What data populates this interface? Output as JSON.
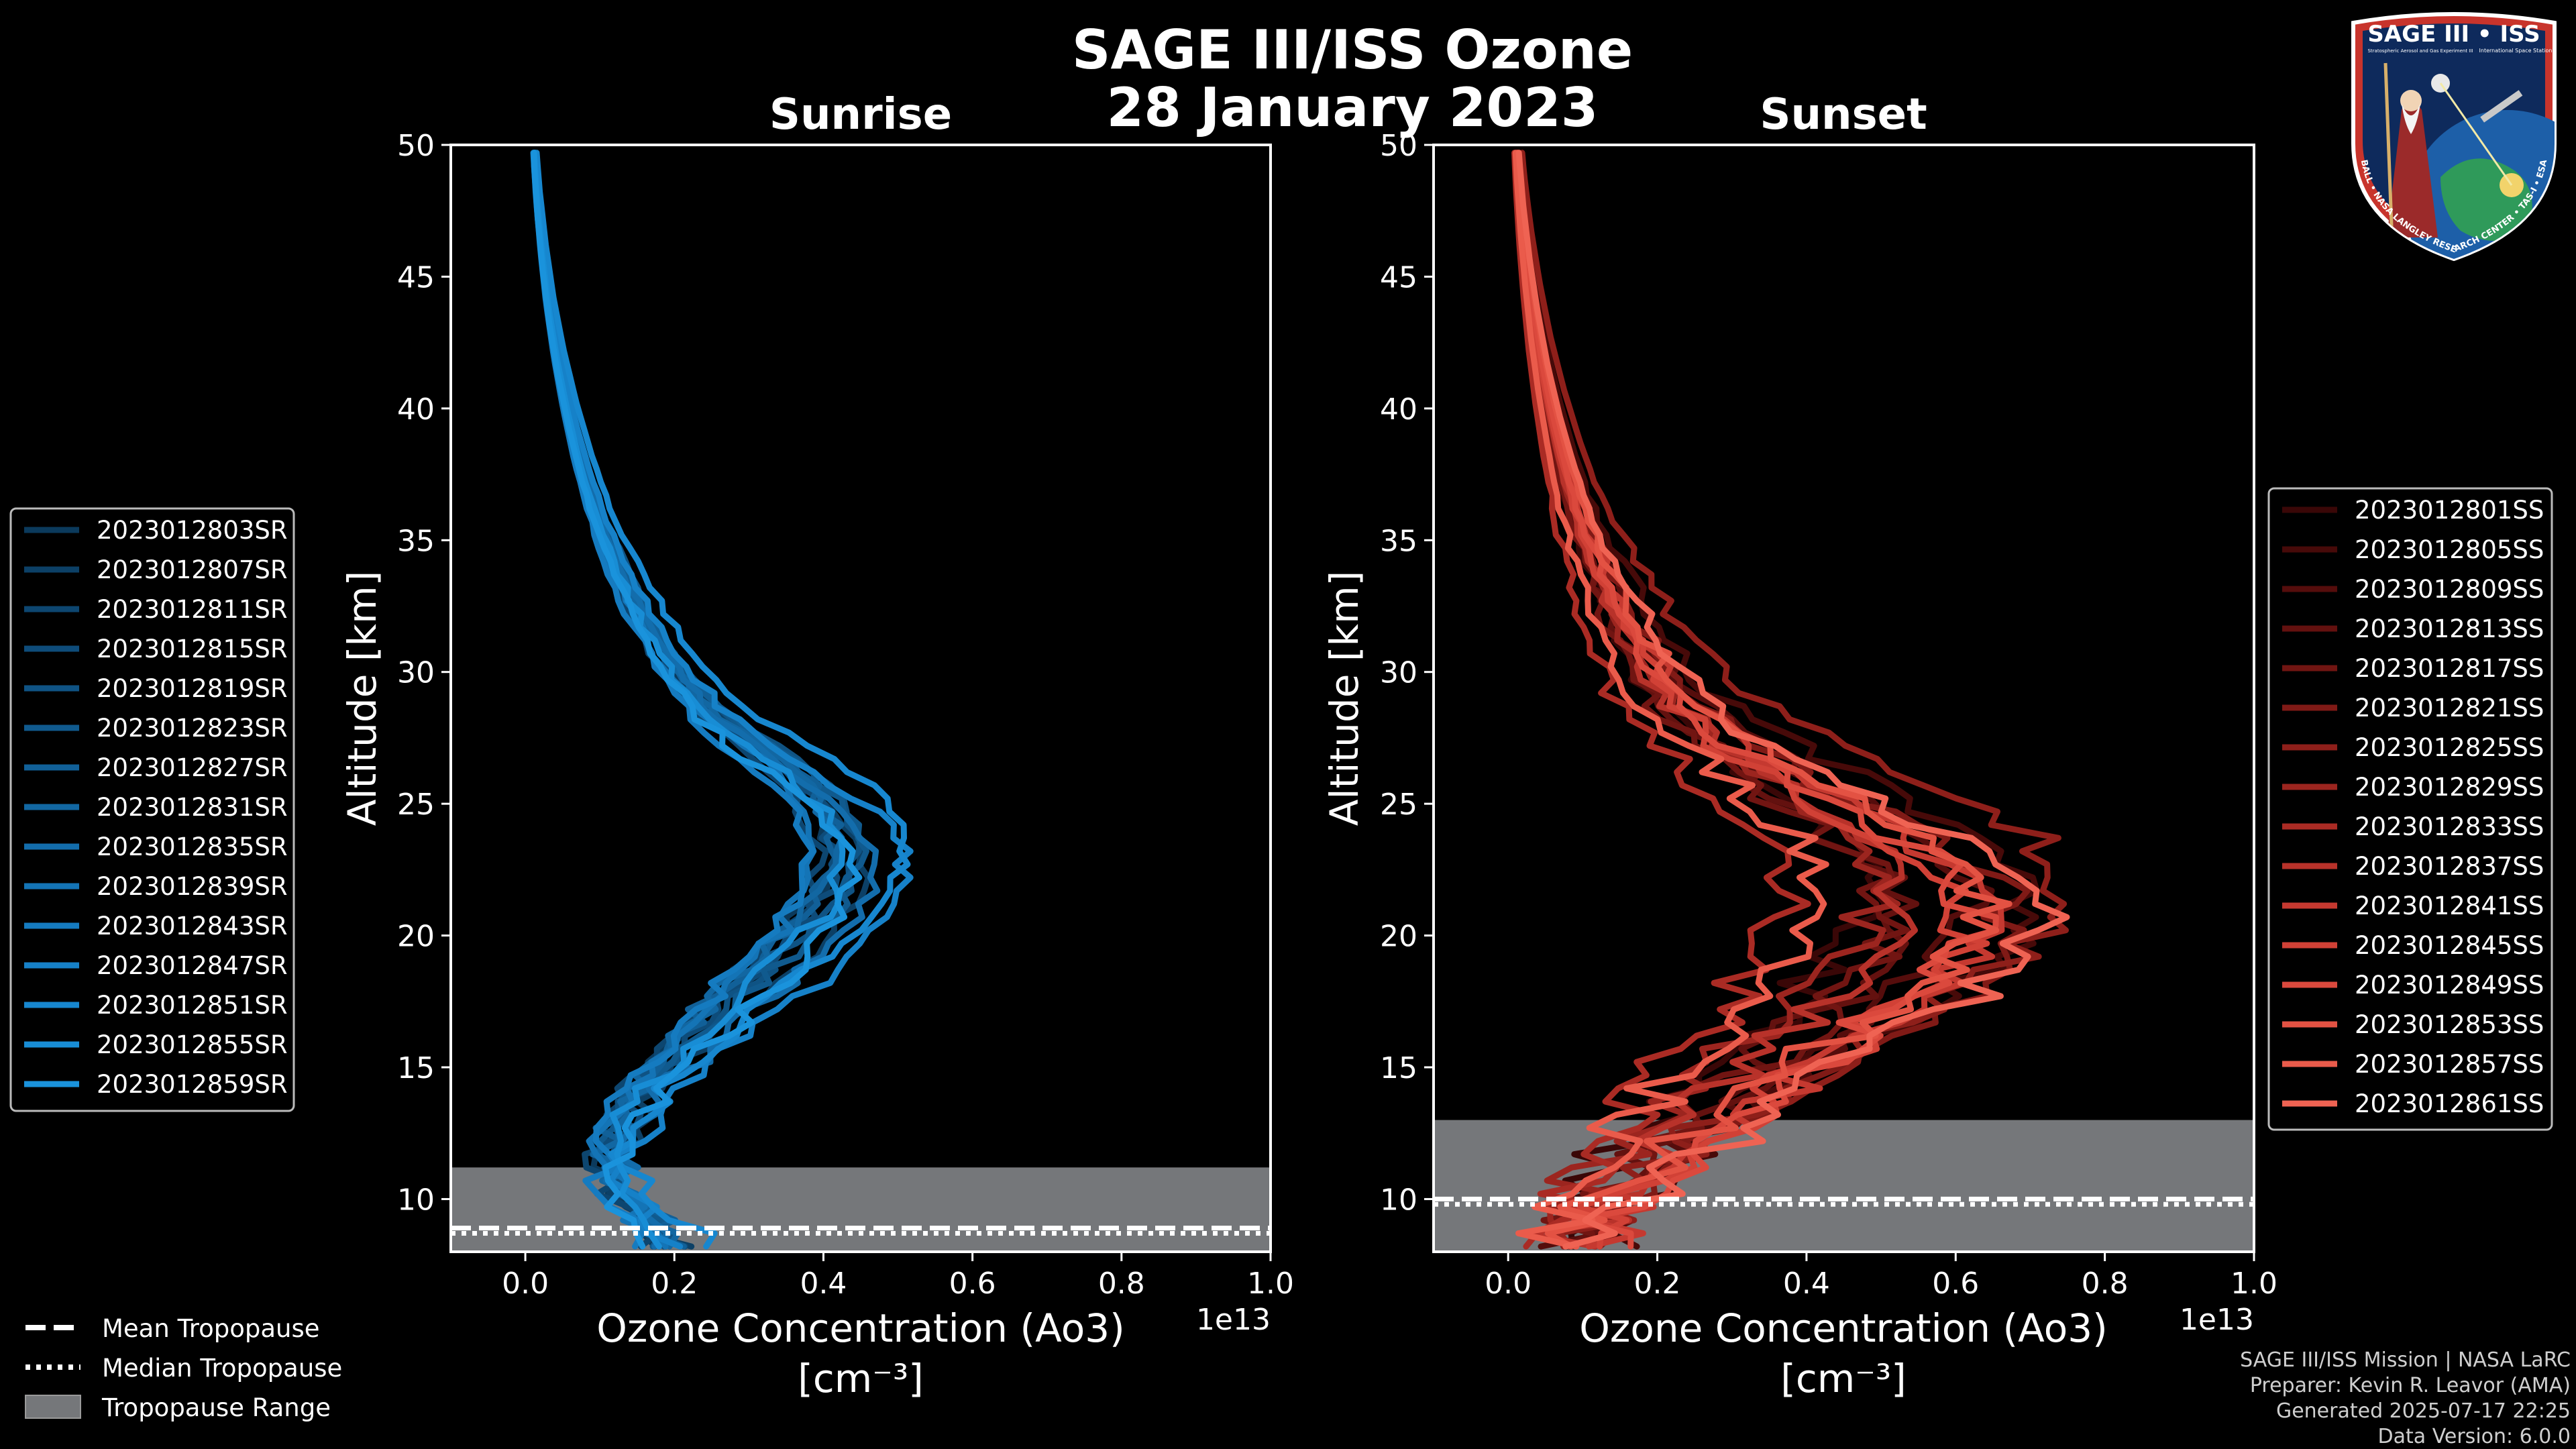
{
  "title": "SAGE III/ISS Ozone",
  "date": "28 January 2023",
  "colors": {
    "background": "#000000",
    "sunrise_accent": "#1b8fd6",
    "sunset_accent": "#e8574a",
    "tropopause_range": "#75777a"
  },
  "badge": {
    "title": "SAGE III • ISS",
    "subtitle_left": "Stratospheric Aerosol and Gas Experiment III",
    "subtitle_right": "International Space Station",
    "ring_text": "BALL • NASA LANGLEY RESEARCH CENTER • TAS-I • ESA"
  },
  "legend_bottom": {
    "mean": "Mean Tropopause",
    "median": "Median Tropopause",
    "range": "Tropopause Range"
  },
  "credits": {
    "line1": "SAGE III/ISS Mission | NASA LaRC",
    "line2": "Preparer: Kevin R. Leavor (AMA)",
    "line3": "Generated 2025-07-17 22:25",
    "line4": "Data Version: 6.0.0"
  },
  "chart_data": [
    {
      "type": "line",
      "title": "Sunrise",
      "xlabel": "Ozone Concentration (Ao3)",
      "xunit": "[cm⁻³]",
      "ylabel": "Altitude [km]",
      "x_scale_label": "1e13",
      "xlim": [
        -0.1,
        1.0
      ],
      "ylim": [
        8,
        50
      ],
      "xticks": [
        0.0,
        0.2,
        0.4,
        0.6,
        0.8,
        1.0
      ],
      "xtick_labels": [
        "0.0",
        "0.2",
        "0.4",
        "0.6",
        "0.8",
        "1.0"
      ],
      "yticks": [
        10,
        15,
        20,
        25,
        30,
        35,
        40,
        45,
        50
      ],
      "tropopause": {
        "mean": 8.9,
        "median": 8.7,
        "range": [
          7.9,
          11.2
        ]
      },
      "base_profile": {
        "alt": [
          8.5,
          10,
          11,
          12,
          13,
          14,
          15,
          16,
          17,
          18,
          19,
          20,
          21,
          22,
          23,
          24,
          25,
          26,
          27,
          28,
          29,
          30,
          32,
          34,
          36,
          38,
          40,
          42,
          44,
          46,
          48,
          50
        ],
        "o3": [
          0.2,
          0.14,
          0.12,
          0.12,
          0.14,
          0.16,
          0.19,
          0.23,
          0.27,
          0.31,
          0.35,
          0.39,
          0.42,
          0.44,
          0.45,
          0.44,
          0.42,
          0.38,
          0.33,
          0.28,
          0.24,
          0.21,
          0.165,
          0.13,
          0.1,
          0.078,
          0.06,
          0.045,
          0.033,
          0.024,
          0.017,
          0.012
        ]
      },
      "series": [
        {
          "name": "2023012803SR",
          "color": "#0b3a5c"
        },
        {
          "name": "2023012807SR",
          "color": "#0c4066"
        },
        {
          "name": "2023012811SR",
          "color": "#0d4670"
        },
        {
          "name": "2023012815SR",
          "color": "#0e4c7a"
        },
        {
          "name": "2023012819SR",
          "color": "#0f5384"
        },
        {
          "name": "2023012823SR",
          "color": "#105a8e"
        },
        {
          "name": "2023012827SR",
          "color": "#116098"
        },
        {
          "name": "2023012831SR",
          "color": "#1267a2"
        },
        {
          "name": "2023012835SR",
          "color": "#136dac"
        },
        {
          "name": "2023012839SR",
          "color": "#1474b6"
        },
        {
          "name": "2023012843SR",
          "color": "#157bc0"
        },
        {
          "name": "2023012847SR",
          "color": "#1681c8"
        },
        {
          "name": "2023012851SR",
          "color": "#1787cf"
        },
        {
          "name": "2023012855SR",
          "color": "#188dd5"
        },
        {
          "name": "2023012859SR",
          "color": "#1a93dc"
        }
      ]
    },
    {
      "type": "line",
      "title": "Sunset",
      "xlabel": "Ozone Concentration (Ao3)",
      "xunit": "[cm⁻³]",
      "ylabel": "Altitude [km]",
      "x_scale_label": "1e13",
      "xlim": [
        -0.1,
        1.0
      ],
      "ylim": [
        8,
        50
      ],
      "xticks": [
        0.0,
        0.2,
        0.4,
        0.6,
        0.8,
        1.0
      ],
      "xtick_labels": [
        "0.0",
        "0.2",
        "0.4",
        "0.6",
        "0.8",
        "1.0"
      ],
      "yticks": [
        10,
        15,
        20,
        25,
        30,
        35,
        40,
        45,
        50
      ],
      "tropopause": {
        "mean": 10.0,
        "median": 9.8,
        "range": [
          7.9,
          13.0
        ]
      },
      "base_profile": {
        "alt": [
          8.5,
          10,
          11,
          12,
          13,
          14,
          15,
          16,
          17,
          18,
          19,
          20,
          21,
          22,
          23,
          24,
          25,
          26,
          27,
          28,
          29,
          30,
          32,
          34,
          36,
          38,
          40,
          42,
          44,
          46,
          48,
          50
        ],
        "o3": [
          0.1,
          0.13,
          0.17,
          0.21,
          0.26,
          0.31,
          0.36,
          0.41,
          0.46,
          0.51,
          0.55,
          0.58,
          0.59,
          0.58,
          0.55,
          0.5,
          0.44,
          0.38,
          0.32,
          0.27,
          0.23,
          0.2,
          0.16,
          0.125,
          0.095,
          0.075,
          0.058,
          0.044,
          0.033,
          0.024,
          0.017,
          0.012
        ]
      },
      "series": [
        {
          "name": "2023012801SS",
          "color": "#3a0707"
        },
        {
          "name": "2023012805SS",
          "color": "#470a09"
        },
        {
          "name": "2023012809SS",
          "color": "#550d0c"
        },
        {
          "name": "2023012813SS",
          "color": "#63110f"
        },
        {
          "name": "2023012817SS",
          "color": "#711512"
        },
        {
          "name": "2023012821SS",
          "color": "#801a16"
        },
        {
          "name": "2023012825SS",
          "color": "#8e1f1a"
        },
        {
          "name": "2023012829SS",
          "color": "#9c251f"
        },
        {
          "name": "2023012833SS",
          "color": "#aa2b24"
        },
        {
          "name": "2023012837SS",
          "color": "#b8322a"
        },
        {
          "name": "2023012841SS",
          "color": "#c53930"
        },
        {
          "name": "2023012845SS",
          "color": "#d14136"
        },
        {
          "name": "2023012849SS",
          "color": "#db493d"
        },
        {
          "name": "2023012853SS",
          "color": "#e35243"
        },
        {
          "name": "2023012857SS",
          "color": "#ea5b4b"
        },
        {
          "name": "2023012861SS",
          "color": "#ef6353"
        }
      ]
    }
  ]
}
